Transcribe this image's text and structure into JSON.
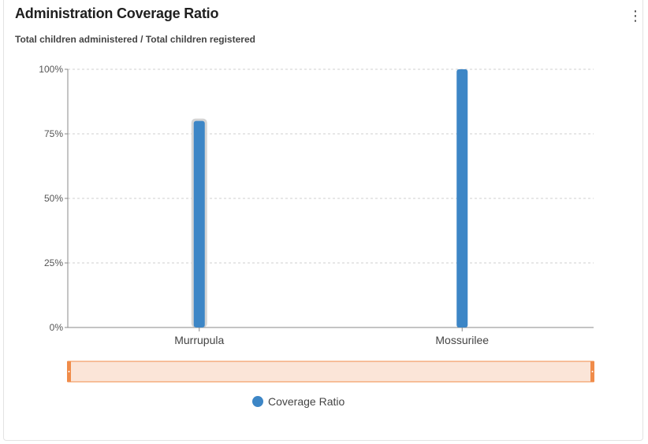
{
  "header": {
    "title": "Administration Coverage Ratio",
    "subtitle": "Total children administered / Total children registered",
    "menu_icon": "kebab-menu-icon"
  },
  "colors": {
    "bar": "#3d86c6",
    "scrollbar_fill": "#fbe5d8",
    "scrollbar_border": "#f08c4a",
    "grid": "#cfcfcf",
    "axis": "#888888"
  },
  "chart_data": {
    "type": "bar",
    "title": "Administration Coverage Ratio",
    "subtitle": "Total children administered / Total children registered",
    "categories": [
      "Murrupula",
      "Mossurilee"
    ],
    "series": [
      {
        "name": "Coverage Ratio",
        "values": [
          80,
          100
        ]
      }
    ],
    "ylim": [
      0,
      100
    ],
    "y_ticks": [
      "0%",
      "25%",
      "50%",
      "75%",
      "100%"
    ],
    "y_tick_values": [
      0,
      25,
      50,
      75,
      100
    ],
    "grid": true,
    "legend": "bottom-center",
    "highlighted_category": "Murrupula"
  },
  "legend": {
    "label": "Coverage Ratio"
  }
}
